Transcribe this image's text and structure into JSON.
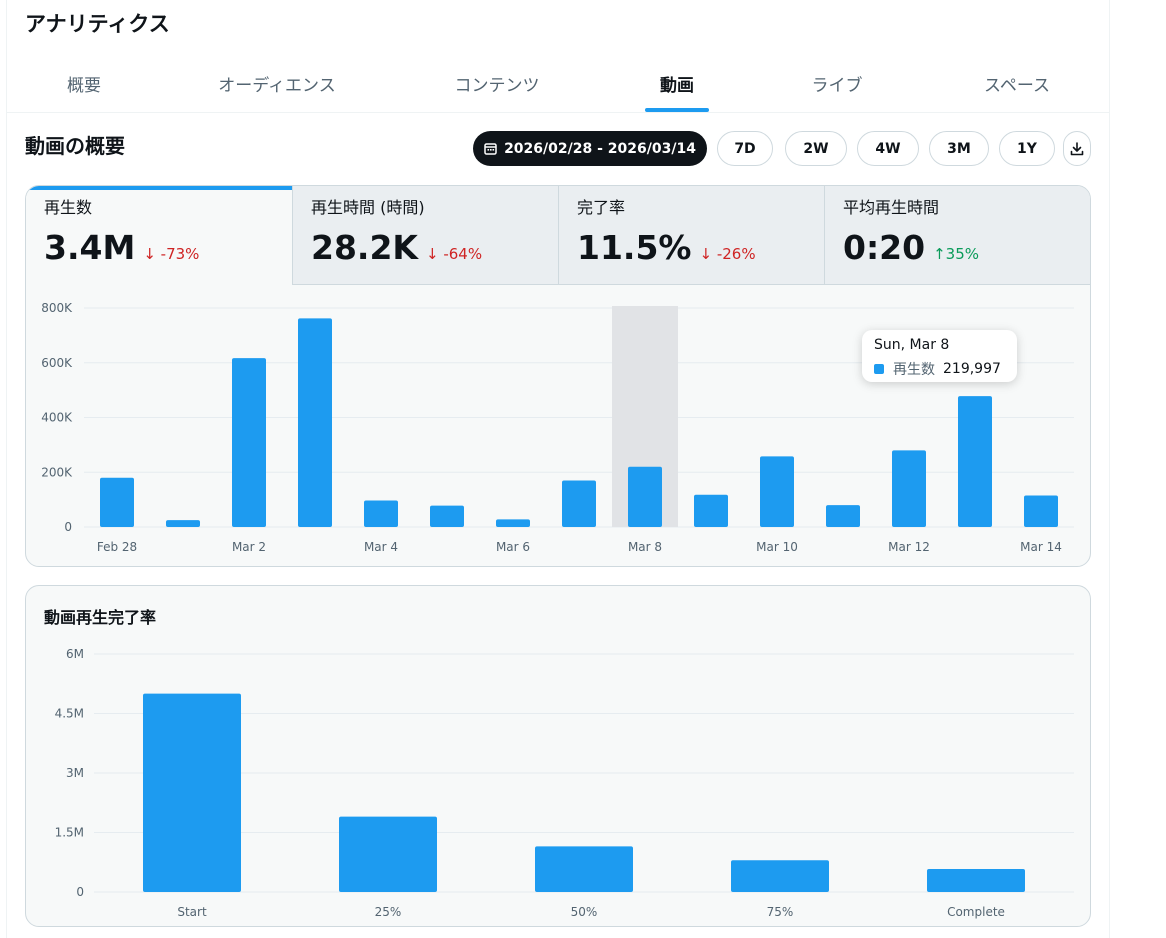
{
  "page": {
    "title": "アナリティクス"
  },
  "tabs": [
    {
      "label": "概要"
    },
    {
      "label": "オーディエンス"
    },
    {
      "label": "コンテンツ"
    },
    {
      "label": "動画",
      "active": true
    },
    {
      "label": "ライブ"
    },
    {
      "label": "スペース"
    }
  ],
  "overview": {
    "title": "動画の概要",
    "date_range": "2026/02/28 - 2026/03/14",
    "date_icon": "calendar-icon",
    "ranges": [
      "7D",
      "2W",
      "4W",
      "3M",
      "1Y"
    ],
    "download_icon": "download-icon"
  },
  "metrics": [
    {
      "label": "再生数",
      "value": "3.4M",
      "delta": "-73%",
      "direction": "down",
      "active": true
    },
    {
      "label": "再生時間 (時間)",
      "value": "28.2K",
      "delta": "-64%",
      "direction": "down"
    },
    {
      "label": "完了率",
      "value": "11.5%",
      "delta": "-26%",
      "direction": "down"
    },
    {
      "label": "平均再生時間",
      "value": "0:20",
      "delta": "35%",
      "direction": "up"
    }
  ],
  "tooltip": {
    "date": "Sun, Mar 8",
    "series": "再生数",
    "value": "219,997"
  },
  "colors": {
    "accent": "#1d9bf0",
    "down": "#cf2424",
    "up": "#0a9b5a",
    "highlight": "#e1e3e6"
  },
  "chart_data": [
    {
      "type": "bar",
      "categories": [
        "Feb 28",
        "Mar 1",
        "Mar 2",
        "Mar 3",
        "Mar 4",
        "Mar 5",
        "Mar 6",
        "Mar 7",
        "Mar 8",
        "Mar 9",
        "Mar 10",
        "Mar 11",
        "Mar 12",
        "Mar 13",
        "Mar 14"
      ],
      "x_tick_labels": [
        "Feb 28",
        "Mar 2",
        "Mar 4",
        "Mar 6",
        "Mar 8",
        "Mar 10",
        "Mar 12",
        "Mar 14"
      ],
      "series": [
        {
          "name": "再生数",
          "values": [
            180000,
            25000,
            617000,
            762000,
            97000,
            78000,
            28000,
            170000,
            219997,
            118000,
            258000,
            80000,
            280000,
            478000,
            115000
          ]
        }
      ],
      "y_ticks": [
        "0",
        "200K",
        "400K",
        "600K",
        "800K"
      ],
      "ylim": [
        0,
        800000
      ],
      "highlight_category": "Mar 8",
      "grid": true
    },
    {
      "type": "bar",
      "title": "動画再生完了率",
      "categories": [
        "Start",
        "25%",
        "50%",
        "75%",
        "Complete"
      ],
      "values": [
        5000000,
        1900000,
        1150000,
        800000,
        580000
      ],
      "y_ticks": [
        "0",
        "1.5M",
        "3M",
        "4.5M",
        "6M"
      ],
      "ylim": [
        0,
        6000000
      ],
      "grid": true
    }
  ]
}
